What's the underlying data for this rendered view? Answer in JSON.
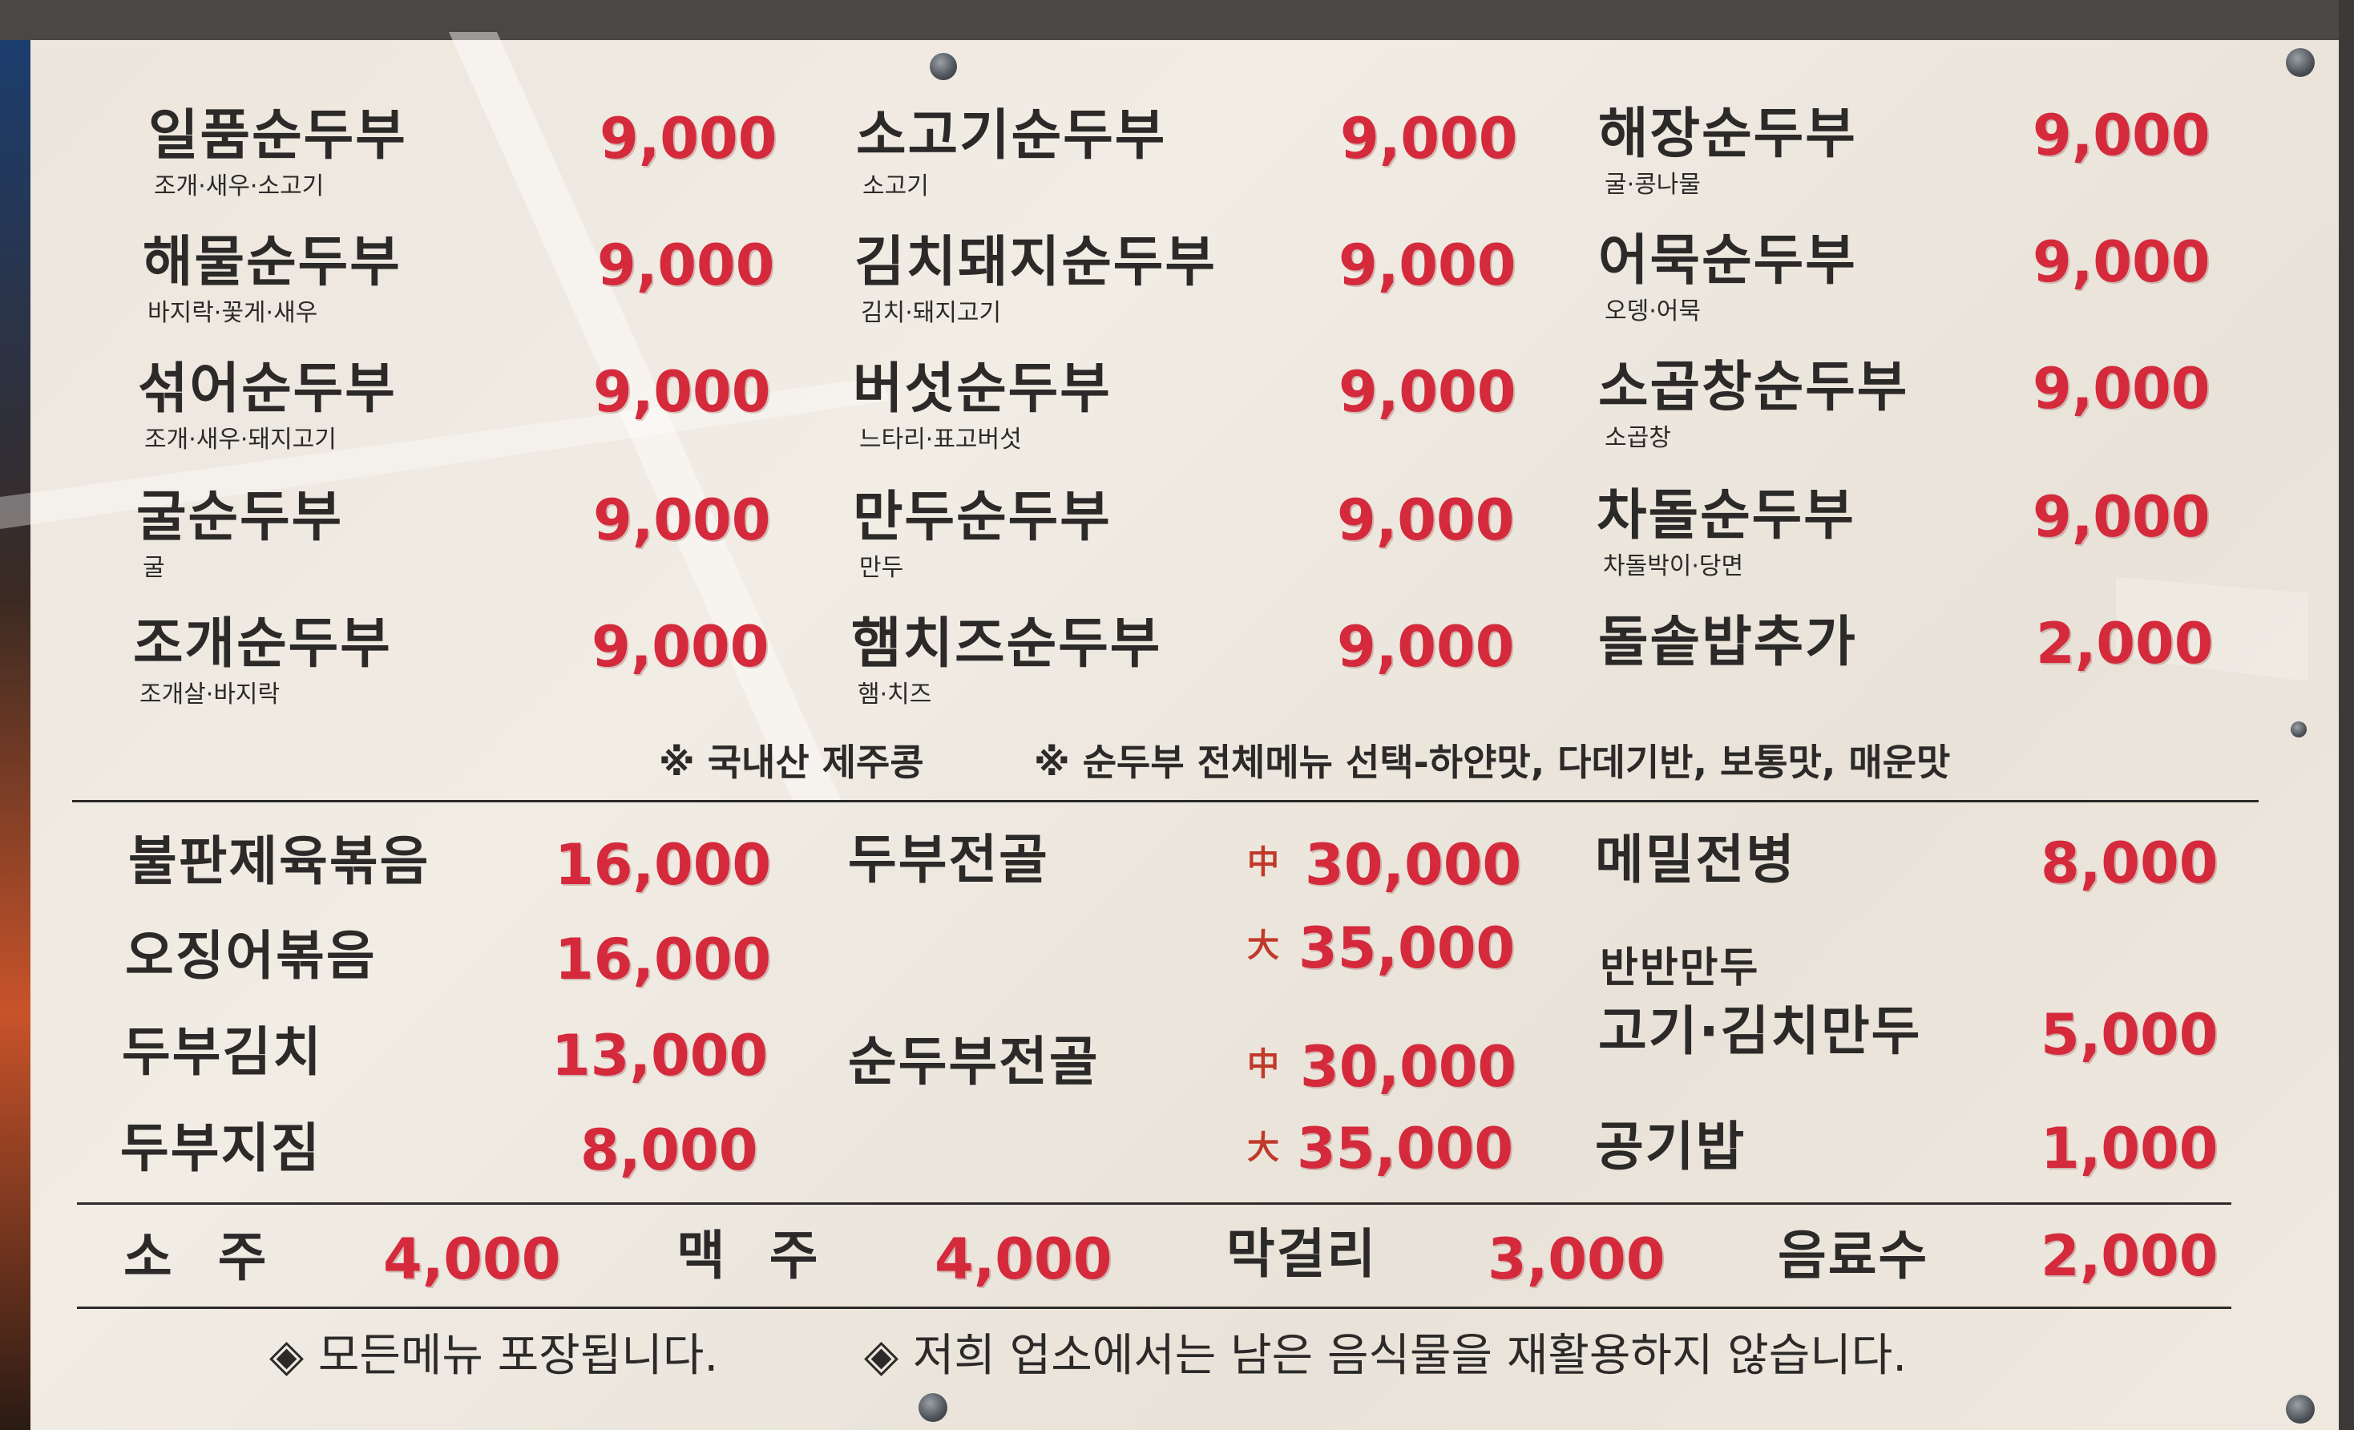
{
  "section1": [
    {
      "name": "일품순두부",
      "desc": "조개·새우·소고기",
      "price": "9,000"
    },
    {
      "name": "해물순두부",
      "desc": "바지락·꽃게·새우",
      "price": "9,000"
    },
    {
      "name": "섞어순두부",
      "desc": "조개·새우·돼지고기",
      "price": "9,000"
    },
    {
      "name": "굴순두부",
      "desc": "굴",
      "price": "9,000"
    },
    {
      "name": "조개순두부",
      "desc": "조개살·바지락",
      "price": "9,000"
    },
    {
      "name": "소고기순두부",
      "desc": "소고기",
      "price": "9,000"
    },
    {
      "name": "김치돼지순두부",
      "desc": "김치·돼지고기",
      "price": "9,000"
    },
    {
      "name": "버섯순두부",
      "desc": "느타리·표고버섯",
      "price": "9,000"
    },
    {
      "name": "만두순두부",
      "desc": "만두",
      "price": "9,000"
    },
    {
      "name": "햄치즈순두부",
      "desc": "햄·치즈",
      "price": "9,000"
    },
    {
      "name": "해장순두부",
      "desc": "굴·콩나물",
      "price": "9,000"
    },
    {
      "name": "어묵순두부",
      "desc": "오뎅·어묵",
      "price": "9,000"
    },
    {
      "name": "소곱창순두부",
      "desc": "소곱창",
      "price": "9,000"
    },
    {
      "name": "차돌순두부",
      "desc": "차돌박이·당면",
      "price": "9,000"
    },
    {
      "name": "돌솥밥추가",
      "desc": "",
      "price": "2,000"
    }
  ],
  "notes": {
    "origin": "※ 국내산 제주콩",
    "spice": "※ 순두부 전체메뉴 선택-하얀맛, 다데기반, 보통맛, 매운맛"
  },
  "section2": {
    "left": [
      {
        "name": "불판제육볶음",
        "price": "16,000"
      },
      {
        "name": "오징어볶음",
        "price": "16,000"
      },
      {
        "name": "두부김치",
        "price": "13,000"
      },
      {
        "name": "두부지짐",
        "price": "8,000"
      }
    ],
    "middle": [
      {
        "name": "두부전골",
        "medium_label": "中",
        "medium": "30,000",
        "large_label": "大",
        "large": "35,000"
      },
      {
        "name": "순두부전골",
        "medium_label": "中",
        "medium": "30,000",
        "large_label": "大",
        "large": "35,000"
      }
    ],
    "right": [
      {
        "name": "메밀전병",
        "price": "8,000"
      },
      {
        "name_top": "반반만두",
        "name": "고기·김치만두",
        "price": "5,000"
      },
      {
        "name": "공기밥",
        "price": "1,000"
      }
    ]
  },
  "drinks": [
    {
      "name": "소 주",
      "price": "4,000"
    },
    {
      "name": "맥 주",
      "price": "4,000"
    },
    {
      "name": "막걸리",
      "price": "3,000"
    },
    {
      "name": "음료수",
      "price": "2,000"
    }
  ],
  "footer": {
    "takeout": "◈ 모든메뉴 포장됩니다.",
    "norecycle": "◈ 저희 업소에서는 남은 음식물을 재활용하지 않습니다."
  },
  "colors": {
    "price": "#d42a3c",
    "text": "#2b2a29",
    "board": "#ece6dd"
  }
}
